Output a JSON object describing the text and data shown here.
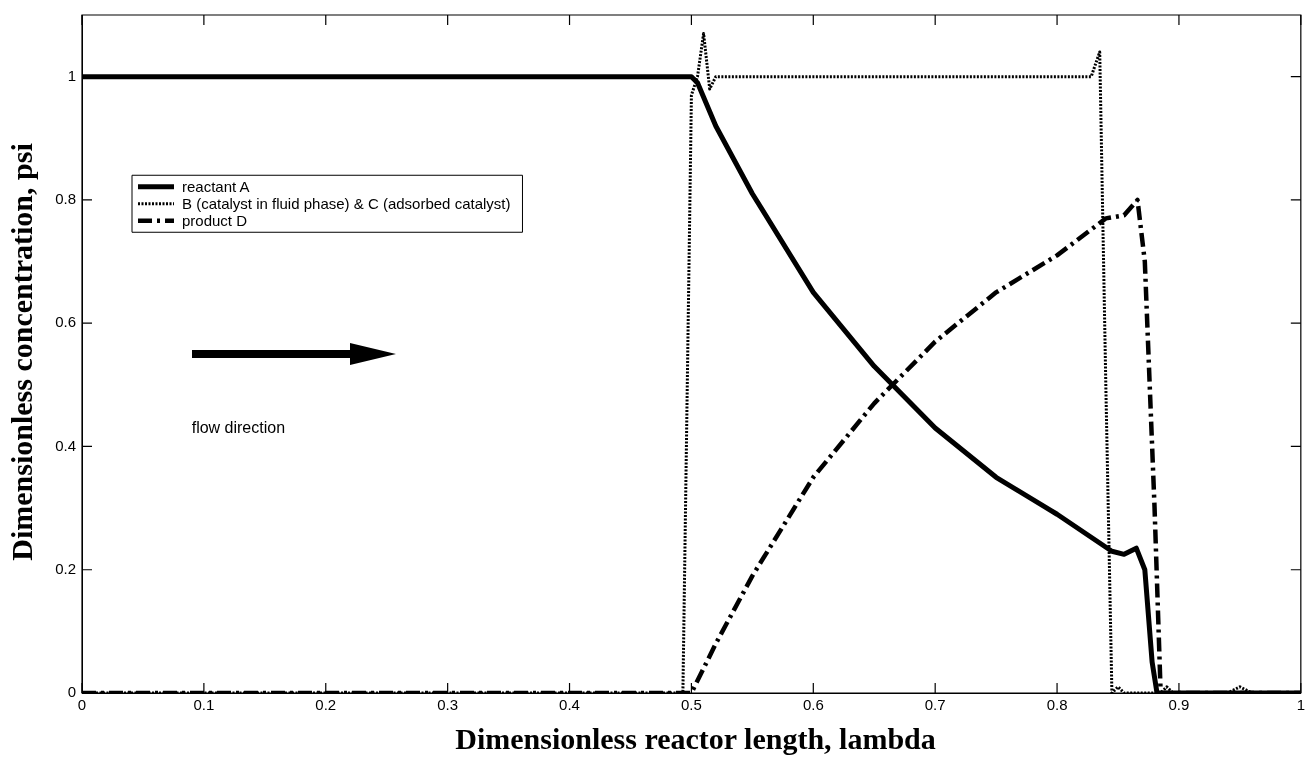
{
  "chart_data": {
    "type": "line",
    "xlabel": "Dimensionless reactor length, lambda",
    "ylabel": "Dimensionless concentration, psi",
    "xlim": [
      0,
      1
    ],
    "ylim": [
      0,
      1.1
    ],
    "xticks": [
      0,
      0.1,
      0.2,
      0.3,
      0.4,
      0.5,
      0.6,
      0.7,
      0.8,
      0.9,
      1
    ],
    "yticks": [
      0,
      0.2,
      0.4,
      0.6,
      0.8,
      1
    ],
    "legend": "top left",
    "marker": "none",
    "annotations": [
      "flow direction"
    ],
    "series": [
      {
        "name": "reactant A",
        "color": "#000000",
        "line_style": "solid",
        "x": [
          0,
          0.49,
          0.5,
          0.505,
          0.52,
          0.55,
          0.6,
          0.65,
          0.7,
          0.75,
          0.8,
          0.845,
          0.855,
          0.865,
          0.872,
          0.878,
          0.882,
          1
        ],
        "values": [
          1,
          1,
          1,
          0.99,
          0.92,
          0.81,
          0.65,
          0.53,
          0.43,
          0.35,
          0.29,
          0.23,
          0.225,
          0.235,
          0.2,
          0.05,
          0,
          0
        ]
      },
      {
        "name": "B (catalyst in fluid phase) & C (adsorbed catalyst)",
        "color": "#000000",
        "line_style": "dotted",
        "x": [
          0,
          0.493,
          0.5,
          0.505,
          0.51,
          0.515,
          0.52,
          0.6,
          0.7,
          0.8,
          0.828,
          0.835,
          0.84,
          0.845,
          0.85,
          0.855,
          0.885,
          0.89,
          0.895,
          0.94,
          0.95,
          0.96,
          1
        ],
        "values": [
          0,
          0,
          0.97,
          1,
          1.07,
          0.98,
          1,
          1,
          1,
          1,
          1,
          1.04,
          0.5,
          0,
          0.01,
          0,
          0,
          0.01,
          0,
          0,
          0.01,
          0,
          0
        ]
      },
      {
        "name": "product D",
        "color": "#000000",
        "line_style": "dashed",
        "x": [
          0,
          0.5,
          0.52,
          0.55,
          0.6,
          0.65,
          0.7,
          0.75,
          0.8,
          0.84,
          0.855,
          0.866,
          0.872,
          0.88,
          0.885,
          1
        ],
        "values": [
          0,
          0,
          0.08,
          0.19,
          0.35,
          0.47,
          0.57,
          0.65,
          0.71,
          0.77,
          0.775,
          0.8,
          0.7,
          0.3,
          0,
          0
        ]
      }
    ]
  }
}
